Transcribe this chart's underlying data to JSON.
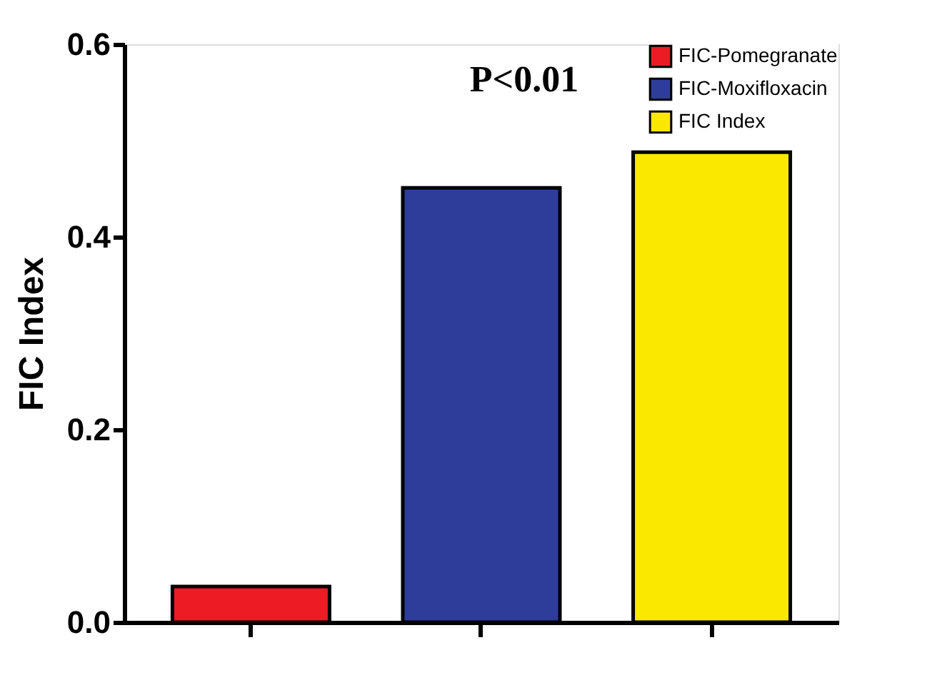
{
  "chart_data": {
    "type": "bar",
    "ylabel": "FIC Index",
    "categories": [
      null,
      null,
      null
    ],
    "series": [
      {
        "name": "FIC-Pomegranate",
        "color": "#ed1c24",
        "values": [
          0.037,
          null,
          null
        ]
      },
      {
        "name": "FIC-Moxifloxacin",
        "color": "#2e3d9a",
        "values": [
          null,
          0.451,
          null
        ]
      },
      {
        "name": "FIC Index",
        "color": "#fbe800",
        "values": [
          null,
          null,
          0.488
        ]
      }
    ],
    "ylim": [
      0,
      0.6
    ],
    "yticks": [
      {
        "value": 0,
        "label": "0.0"
      },
      0.2,
      0.4,
      0.6
    ],
    "annotations": [
      "P<0.01"
    ],
    "legend": "top right",
    "tick_labels": "y",
    "grid": false
  }
}
